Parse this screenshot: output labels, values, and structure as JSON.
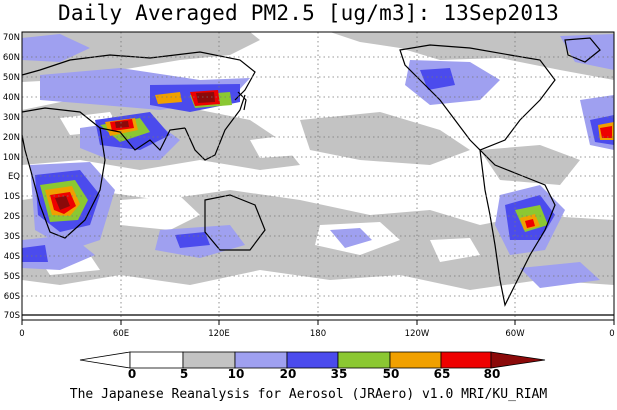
{
  "title": "Daily Averaged PM2.5 [ug/m3]: 13Sep2013",
  "footer": "The Japanese Reanalysis for Aerosol (JRAero) v1.0 MRI/KU_RIAM",
  "lat_labels": [
    "70N",
    "60N",
    "50N",
    "40N",
    "30N",
    "20N",
    "10N",
    "EQ",
    "10S",
    "20S",
    "30S",
    "40S",
    "50S",
    "60S",
    "70S"
  ],
  "lon_labels": [
    "0",
    "60E",
    "120E",
    "180",
    "120W",
    "60W",
    "0"
  ],
  "colorbar": {
    "levels": [
      "0",
      "5",
      "10",
      "20",
      "35",
      "50",
      "65",
      "80"
    ],
    "colors": [
      "#ffffff",
      "#c0c0c0",
      "#a0a0f0",
      "#4a4aee",
      "#8ac832",
      "#f0a000",
      "#ee0000",
      "#8b0000"
    ]
  },
  "colors": {
    "gray": "#c3c3c3",
    "lightblue": "#9fa0f0",
    "blue": "#4b4bed",
    "green": "#8bc832",
    "orange": "#f0a000",
    "red": "#ee0000",
    "darkred": "#8b0a0a"
  }
}
